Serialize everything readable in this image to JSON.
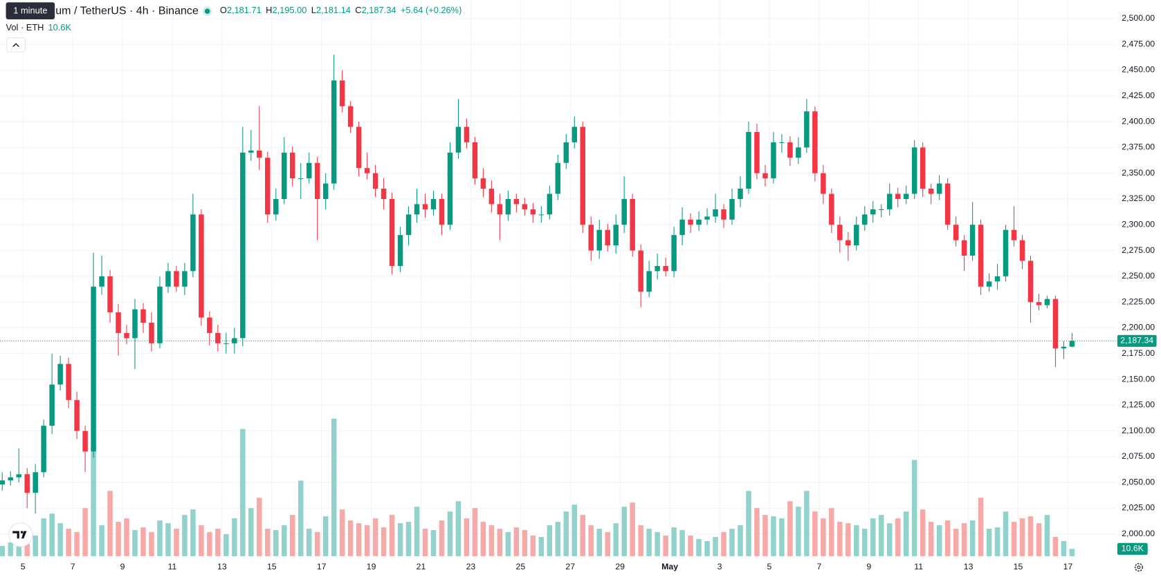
{
  "tooltip": "1 minute",
  "chart_data": {
    "type": "candlestick",
    "title": "um / TetherUS · 4h · Binance",
    "ohlc_legend": [
      {
        "key": "O",
        "value": "2,181.71"
      },
      {
        "key": "H",
        "value": "2,195.00"
      },
      {
        "key": "L",
        "value": "2,181.14"
      },
      {
        "key": "C",
        "value": "2,187.34"
      }
    ],
    "change": "+5.64 (+0.26%)",
    "volume_legend": {
      "label": "Vol · ETH",
      "value": "10.6K"
    },
    "up_color": "#089981",
    "down_color": "#f23645",
    "volume_up_color": "#92d2cc",
    "volume_down_color": "#f7a9a7",
    "grid": true,
    "open": [
      2048,
      2052,
      2055,
      2058,
      2040,
      2060,
      2105,
      2145,
      2165,
      2130,
      2100,
      2080,
      2240,
      2250,
      2215,
      2195,
      2190,
      2218,
      2205,
      2185,
      2240,
      2255,
      2240,
      2255,
      2310,
      2210,
      2195,
      2185,
      2185,
      2190,
      2370,
      2372,
      2365,
      2310,
      2325,
      2370,
      2345,
      2345,
      2360,
      2325,
      2340,
      2440,
      2415,
      2395,
      2355,
      2350,
      2335,
      2325,
      2260,
      2290,
      2310,
      2320,
      2315,
      2325,
      2300,
      2370,
      2395,
      2380,
      2345,
      2335,
      2320,
      2310,
      2325,
      2320,
      2315,
      2310,
      2310,
      2330,
      2360,
      2380,
      2395,
      2300,
      2275,
      2295,
      2280,
      2300,
      2325,
      2275,
      2235,
      2255,
      2260,
      2255,
      2290,
      2305,
      2300,
      2305,
      2308,
      2315,
      2305,
      2325,
      2335,
      2390,
      2350,
      2345,
      2380,
      2380,
      2365,
      2375,
      2410,
      2350,
      2330,
      2300,
      2285,
      2280,
      2300,
      2310,
      2315,
      2315,
      2330,
      2325,
      2330,
      2375,
      2335,
      2330,
      2340,
      2300,
      2285,
      2270,
      2300,
      2240,
      2245,
      2250,
      2295,
      2285,
      2265,
      2225,
      2222,
      2228,
      2180,
      2181.71
    ],
    "high": [
      2060,
      2061,
      2083,
      2064,
      2068,
      2111,
      2175,
      2173,
      2171,
      2138,
      2105,
      2273,
      2270,
      2256,
      2223,
      2203,
      2228,
      2224,
      2215,
      2250,
      2263,
      2260,
      2263,
      2330,
      2315,
      2216,
      2203,
      2195,
      2200,
      2395,
      2392,
      2415,
      2371,
      2335,
      2385,
      2376,
      2360,
      2370,
      2366,
      2350,
      2465,
      2450,
      2420,
      2400,
      2370,
      2358,
      2345,
      2331,
      2298,
      2318,
      2335,
      2330,
      2333,
      2330,
      2380,
      2422,
      2403,
      2385,
      2355,
      2343,
      2330,
      2333,
      2330,
      2326,
      2321,
      2318,
      2338,
      2368,
      2388,
      2405,
      2400,
      2308,
      2305,
      2301,
      2310,
      2347,
      2330,
      2281,
      2265,
      2272,
      2268,
      2298,
      2317,
      2311,
      2313,
      2316,
      2330,
      2320,
      2335,
      2347,
      2400,
      2398,
      2358,
      2390,
      2388,
      2386,
      2385,
      2422,
      2415,
      2358,
      2335,
      2308,
      2293,
      2308,
      2318,
      2323,
      2320,
      2340,
      2336,
      2338,
      2382,
      2380,
      2340,
      2348,
      2345,
      2308,
      2290,
      2322,
      2305,
      2253,
      2262,
      2300,
      2318,
      2290,
      2270,
      2233,
      2231,
      2231,
      2187,
      2195
    ],
    "low": [
      2042,
      2047,
      2050,
      2025,
      2020,
      2055,
      2097,
      2139,
      2122,
      2092,
      2060,
      2074,
      2232,
      2205,
      2173,
      2184,
      2160,
      2195,
      2177,
      2180,
      2234,
      2235,
      2232,
      2249,
      2202,
      2183,
      2177,
      2175,
      2175,
      2182,
      2362,
      2353,
      2302,
      2304,
      2320,
      2337,
      2325,
      2340,
      2285,
      2315,
      2334,
      2409,
      2389,
      2347,
      2344,
      2327,
      2315,
      2252,
      2254,
      2280,
      2302,
      2307,
      2309,
      2290,
      2295,
      2364,
      2374,
      2339,
      2327,
      2312,
      2285,
      2304,
      2312,
      2309,
      2302,
      2302,
      2305,
      2324,
      2354,
      2374,
      2292,
      2265,
      2267,
      2274,
      2272,
      2292,
      2269,
      2220,
      2230,
      2247,
      2250,
      2249,
      2280,
      2292,
      2294,
      2300,
      2302,
      2297,
      2300,
      2317,
      2330,
      2344,
      2337,
      2340,
      2370,
      2357,
      2359,
      2370,
      2342,
      2320,
      2292,
      2273,
      2265,
      2275,
      2294,
      2302,
      2307,
      2309,
      2317,
      2320,
      2325,
      2327,
      2320,
      2324,
      2295,
      2279,
      2255,
      2265,
      2232,
      2235,
      2237,
      2245,
      2279,
      2257,
      2205,
      2217,
      2219,
      2162,
      2170,
      2181.14
    ],
    "close": [
      2052,
      2055,
      2058,
      2040,
      2060,
      2105,
      2145,
      2165,
      2130,
      2100,
      2080,
      2240,
      2250,
      2215,
      2195,
      2190,
      2218,
      2205,
      2185,
      2240,
      2255,
      2240,
      2255,
      2310,
      2210,
      2195,
      2185,
      2185,
      2190,
      2370,
      2372,
      2365,
      2310,
      2325,
      2370,
      2345,
      2345,
      2360,
      2325,
      2340,
      2440,
      2415,
      2395,
      2355,
      2350,
      2335,
      2325,
      2260,
      2290,
      2310,
      2320,
      2315,
      2325,
      2300,
      2370,
      2395,
      2380,
      2345,
      2335,
      2320,
      2310,
      2325,
      2320,
      2315,
      2310,
      2310,
      2330,
      2360,
      2380,
      2395,
      2300,
      2275,
      2295,
      2280,
      2300,
      2325,
      2275,
      2235,
      2255,
      2260,
      2255,
      2290,
      2305,
      2300,
      2305,
      2308,
      2315,
      2305,
      2325,
      2335,
      2390,
      2350,
      2345,
      2380,
      2380,
      2365,
      2375,
      2410,
      2350,
      2330,
      2300,
      2285,
      2280,
      2300,
      2310,
      2315,
      2315,
      2330,
      2325,
      2330,
      2375,
      2335,
      2330,
      2340,
      2300,
      2285,
      2270,
      2300,
      2240,
      2245,
      2250,
      2295,
      2285,
      2265,
      2225,
      2222,
      2228,
      2180,
      2181.71,
      2187.34
    ],
    "volume": [
      15,
      20,
      25,
      18,
      30,
      55,
      62,
      48,
      40,
      35,
      70,
      160,
      45,
      95,
      50,
      55,
      38,
      42,
      35,
      52,
      48,
      40,
      60,
      68,
      45,
      35,
      40,
      32,
      55,
      185,
      70,
      85,
      40,
      38,
      45,
      60,
      110,
      40,
      35,
      58,
      200,
      68,
      52,
      48,
      45,
      55,
      42,
      60,
      48,
      50,
      72,
      40,
      38,
      52,
      65,
      80,
      55,
      70,
      50,
      45,
      40,
      35,
      42,
      38,
      30,
      28,
      45,
      50,
      65,
      75,
      60,
      45,
      40,
      35,
      48,
      72,
      78,
      45,
      40,
      35,
      30,
      42,
      38,
      30,
      25,
      22,
      28,
      35,
      40,
      45,
      95,
      70,
      60,
      58,
      55,
      80,
      72,
      95,
      65,
      55,
      70,
      50,
      48,
      45,
      40,
      55,
      60,
      48,
      55,
      65,
      140,
      68,
      50,
      45,
      52,
      40,
      48,
      52,
      85,
      40,
      42,
      65,
      50,
      55,
      58,
      48,
      60,
      28,
      22,
      10.6
    ],
    "volume_label": "10.6K",
    "volume_ylim": [
      0,
      200
    ],
    "xlim": [
      -0.27,
      134.28
    ],
    "xticks": [
      {
        "value": 2.5,
        "label": "5"
      },
      {
        "value": 8.5,
        "label": "7"
      },
      {
        "value": 14.5,
        "label": "9"
      },
      {
        "value": 20.5,
        "label": "11"
      },
      {
        "value": 26.5,
        "label": "13"
      },
      {
        "value": 32.5,
        "label": "15"
      },
      {
        "value": 38.5,
        "label": "17"
      },
      {
        "value": 44.5,
        "label": "19"
      },
      {
        "value": 50.5,
        "label": "21"
      },
      {
        "value": 56.5,
        "label": "23"
      },
      {
        "value": 62.5,
        "label": "25"
      },
      {
        "value": 68.5,
        "label": "27"
      },
      {
        "value": 74.5,
        "label": "29"
      },
      {
        "value": 80.5,
        "label": "May"
      },
      {
        "value": 86.5,
        "label": "3"
      },
      {
        "value": 92.5,
        "label": "5"
      },
      {
        "value": 98.5,
        "label": "7"
      },
      {
        "value": 104.5,
        "label": "9"
      },
      {
        "value": 110.5,
        "label": "11"
      },
      {
        "value": 116.5,
        "label": "13"
      },
      {
        "value": 122.5,
        "label": "15"
      },
      {
        "value": 128.5,
        "label": "17"
      }
    ],
    "ylim": [
      2000,
      2500
    ],
    "yticks": [
      {
        "value": 2000,
        "label": "2,000.00"
      },
      {
        "value": 2025,
        "label": "2,025.00"
      },
      {
        "value": 2050,
        "label": "2,050.00"
      },
      {
        "value": 2075,
        "label": "2,075.00"
      },
      {
        "value": 2100,
        "label": "2,100.00"
      },
      {
        "value": 2125,
        "label": "2,125.00"
      },
      {
        "value": 2150,
        "label": "2,150.00"
      },
      {
        "value": 2175,
        "label": "2,175.00"
      },
      {
        "value": 2200,
        "label": "2,200.00"
      },
      {
        "value": 2225,
        "label": "2,225.00"
      },
      {
        "value": 2250,
        "label": "2,250.00"
      },
      {
        "value": 2275,
        "label": "2,275.00"
      },
      {
        "value": 2300,
        "label": "2,300.00"
      },
      {
        "value": 2325,
        "label": "2,325.00"
      },
      {
        "value": 2350,
        "label": "2,350.00"
      },
      {
        "value": 2375,
        "label": "2,375.00"
      },
      {
        "value": 2400,
        "label": "2,400.00"
      },
      {
        "value": 2425,
        "label": "2,425.00"
      },
      {
        "value": 2450,
        "label": "2,450.00"
      },
      {
        "value": 2475,
        "label": "2,475.00"
      },
      {
        "value": 2500,
        "label": "2,500.00"
      }
    ],
    "last_price": {
      "value": 2187.34,
      "label": "2,187.34"
    }
  }
}
